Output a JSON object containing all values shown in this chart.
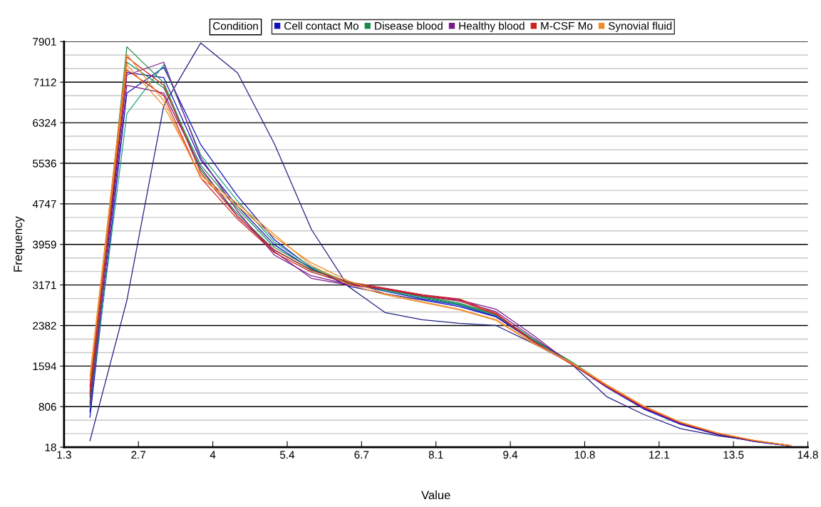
{
  "chart_data": {
    "type": "line",
    "xlabel": "Value",
    "ylabel": "Frequency",
    "legend_title": "Condition",
    "legend": "top",
    "grid": "y",
    "marker": "none",
    "line_style": "solid",
    "x": [
      1.77,
      2.44,
      3.11,
      3.78,
      4.45,
      5.12,
      5.79,
      6.46,
      7.13,
      7.8,
      8.47,
      9.14,
      9.81,
      10.48,
      11.15,
      11.82,
      12.49,
      13.16,
      13.83,
      14.5
    ],
    "xlim": [
      1.3,
      14.8
    ],
    "xticks": [
      1.3,
      {
        "value": 2.65,
        "label": "2.7"
      },
      4,
      {
        "value": 5.35,
        "label": "5.4"
      },
      6.7,
      {
        "value": 8.05,
        "label": "8.1"
      },
      9.4,
      {
        "value": 10.75,
        "label": "10.8"
      },
      12.1,
      {
        "value": 13.45,
        "label": "13.5"
      },
      14.8
    ],
    "ylim": [
      18,
      7901
    ],
    "yticks": [
      18,
      806,
      1594,
      2382,
      3171,
      3959,
      4747,
      5536,
      6324,
      7112,
      7901
    ],
    "series": [
      {
        "name": "Cell contact Mo",
        "color": "#1010c0",
        "values": [
          700,
          7300,
          7200,
          5600,
          4700,
          3950,
          3480,
          3200,
          3050,
          2900,
          2780,
          2560,
          2100,
          1680,
          1200,
          780,
          470,
          270,
          130,
          40
        ]
      },
      {
        "color": "#1010c0",
        "values": [
          600,
          6900,
          7400,
          5900,
          4900,
          4050,
          3500,
          3150,
          3000,
          2880,
          2750,
          2550,
          2080,
          1660,
          1180,
          760,
          460,
          260,
          130,
          40
        ]
      },
      {
        "color": "#202080",
        "values": [
          142,
          2867,
          6656,
          7873,
          7292,
          5910,
          4250,
          3143,
          2632,
          2494,
          2424,
          2383,
          2037,
          1664,
          999,
          654,
          378,
          239,
          142,
          46
        ]
      },
      {
        "name": "Disease blood",
        "color": "#1a8a4a",
        "values": [
          900,
          7500,
          7000,
          5500,
          4650,
          3900,
          3490,
          3210,
          3080,
          2940,
          2800,
          2590,
          2110,
          1690,
          1210,
          790,
          null,
          null,
          null,
          null
        ]
      },
      {
        "color": "#1a8a4a",
        "values": [
          1000,
          7800,
          7100,
          5400,
          4550,
          3850,
          3450,
          3230,
          3080,
          2950,
          2820,
          2600,
          2120,
          1700,
          1220,
          800,
          null,
          null,
          null,
          null
        ]
      },
      {
        "color": "#20a080",
        "values": [
          800,
          6500,
          7450,
          5700,
          4800,
          4000,
          3520,
          3220,
          3060,
          2920,
          2790,
          2580,
          2100,
          1690,
          1210,
          800,
          null,
          null,
          null,
          null
        ]
      },
      {
        "name": "Healthy blood",
        "color": "#7a1a8a",
        "values": [
          1100,
          7250,
          7500,
          5650,
          4600,
          3750,
          3350,
          3180,
          3100,
          2980,
          2880,
          2700,
          2200,
          1650,
          1190,
          780,
          480,
          275,
          140,
          46
        ]
      },
      {
        "color": "#7a1a8a",
        "values": [
          850,
          7050,
          6900,
          5450,
          4500,
          3820,
          3300,
          3170,
          3090,
          2960,
          2860,
          2650,
          2150,
          1670,
          1200,
          790,
          485,
          280,
          142,
          46
        ]
      },
      {
        "name": "M-CSF Mo",
        "color": "#d02020",
        "values": [
          1200,
          7600,
          7050,
          5350,
          4500,
          3850,
          3460,
          3230,
          3110,
          2980,
          2900,
          2620,
          2080,
          1660,
          1210,
          800,
          495,
          285,
          145,
          46
        ]
      },
      {
        "color": "#d02020",
        "values": [
          1050,
          7350,
          6850,
          5250,
          4450,
          3800,
          3420,
          3200,
          3090,
          2960,
          2870,
          2600,
          2070,
          1650,
          1200,
          795,
          490,
          283,
          143,
          46
        ]
      },
      {
        "name": "Synovial fluid",
        "color": "#f08c28",
        "values": [
          1400,
          7650,
          6750,
          5250,
          4700,
          4100,
          3600,
          3250,
          3000,
          2850,
          2700,
          2500,
          2050,
          1680,
          1230,
          820,
          505,
          295,
          150,
          48
        ]
      },
      {
        "color": "#f08c28",
        "values": [
          1300,
          7450,
          6650,
          5300,
          4750,
          4150,
          3550,
          3180,
          2980,
          2830,
          2690,
          2480,
          2040,
          1670,
          1220,
          810,
          500,
          290,
          148,
          48
        ]
      }
    ]
  }
}
